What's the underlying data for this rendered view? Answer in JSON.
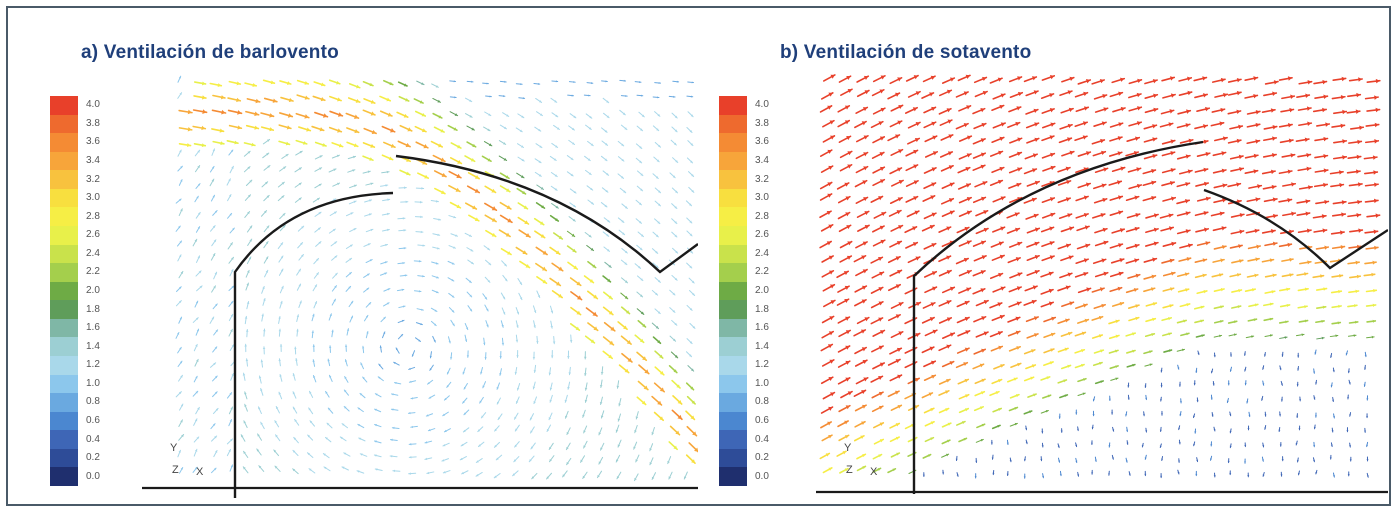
{
  "figure": {
    "panels": [
      {
        "id": "a",
        "title": "a) Ventilación de barlovento",
        "axis_triad": {
          "y": "Y",
          "z": "Z",
          "x": "X"
        }
      },
      {
        "id": "b",
        "title": "b) Ventilación de sotavento",
        "axis_triad": {
          "y": "Y",
          "z": "Z",
          "x": "X"
        }
      }
    ],
    "colorbar": {
      "labels": [
        "4.0",
        "3.8",
        "3.6",
        "3.4",
        "3.2",
        "3.0",
        "2.8",
        "2.6",
        "2.4",
        "2.2",
        "2.0",
        "1.8",
        "1.6",
        "1.4",
        "1.2",
        "1.0",
        "0.8",
        "0.6",
        "0.4",
        "0.2",
        "0.0"
      ],
      "colors": [
        "#e8402a",
        "#ee6a2e",
        "#f48b34",
        "#f7a53a",
        "#f8c23e",
        "#f8df3f",
        "#f6ee45",
        "#e8f04a",
        "#c9e24b",
        "#a4cf4c",
        "#6eab45",
        "#5f9d5a",
        "#7fb7a6",
        "#9ccfd3",
        "#a9d8ea",
        "#8cc7ec",
        "#6aa9e0",
        "#4b87d0",
        "#3e66b6",
        "#2e4c98",
        "#1f2f6e"
      ]
    }
  }
}
